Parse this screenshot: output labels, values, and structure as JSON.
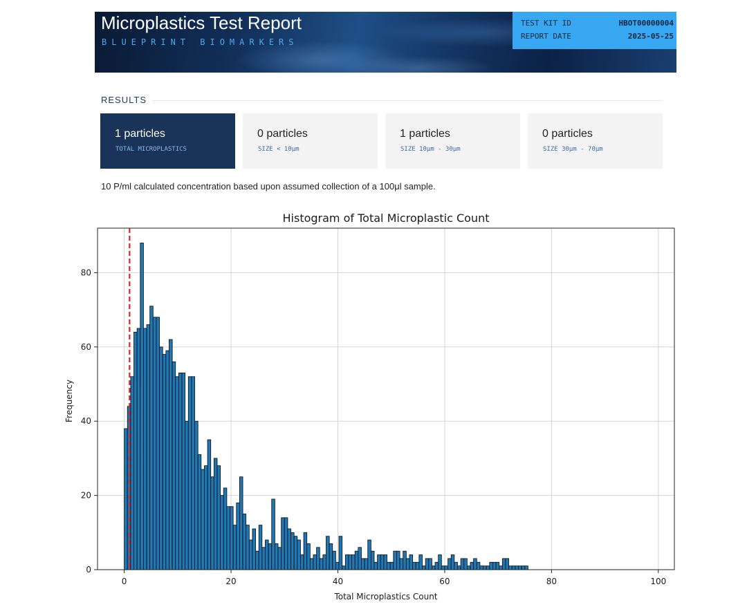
{
  "header": {
    "title": "Microplastics Test Report",
    "subtitle": "BLUEPRINT BIOMARKERS",
    "kit_id_label": "TEST KIT ID",
    "kit_id_value": "HBOT00000004",
    "report_date_label": "REPORT DATE",
    "report_date_value": "2025-05-25"
  },
  "results": {
    "section_label": "RESULTS",
    "cards": [
      {
        "count": "1 particles",
        "label": "TOTAL MICROPLASTICS"
      },
      {
        "count": "0 particles",
        "label": "SIZE < 10μm"
      },
      {
        "count": "1 particles",
        "label": "SIZE 10μm - 30μm"
      },
      {
        "count": "0 particles",
        "label": "SIZE 30μm - 70μm"
      }
    ],
    "note": "10 P/ml calculated concentration based upon assumed collection of a 100μl sample."
  },
  "chart_data": {
    "type": "bar",
    "title": "Histogram of Total Microplastic Count",
    "xlabel": "Total Microplastics Count",
    "ylabel": "Frequency",
    "xlim": [
      -5,
      103
    ],
    "ylim": [
      0,
      92
    ],
    "xticks": [
      0,
      20,
      40,
      60,
      80,
      100
    ],
    "yticks": [
      0,
      20,
      40,
      60,
      80
    ],
    "grid": true,
    "bar_color": "#1f77b4",
    "marker_color": "#d62728",
    "marker_x": 1,
    "bins": {
      "start": 0,
      "width": 0.6,
      "counts": [
        38,
        44,
        52,
        64,
        65,
        88,
        65,
        66,
        71,
        68,
        68,
        60,
        58,
        59,
        62,
        56,
        52,
        53,
        53,
        40,
        52,
        52,
        40,
        31,
        27,
        28,
        35,
        25,
        30,
        28,
        20,
        22,
        17,
        17,
        12,
        18,
        25,
        15,
        12,
        8,
        11,
        5,
        12,
        6,
        8,
        7,
        19,
        7,
        6,
        14,
        14,
        11,
        10,
        9,
        8,
        4,
        10,
        7,
        3,
        4,
        6,
        3,
        4,
        9,
        7,
        5,
        2,
        9,
        1,
        4,
        4,
        4,
        5,
        6,
        3,
        3,
        8,
        5,
        2,
        4,
        4,
        4,
        2,
        2,
        5,
        5,
        3,
        5,
        3,
        4,
        2,
        2,
        4,
        1,
        3,
        3,
        1,
        2,
        4,
        1,
        1,
        3,
        4,
        2,
        1,
        3,
        3,
        1,
        2,
        3,
        2,
        1,
        1,
        1,
        2,
        2,
        2,
        1,
        3,
        3,
        1,
        1,
        1,
        1,
        1,
        1
      ]
    }
  }
}
